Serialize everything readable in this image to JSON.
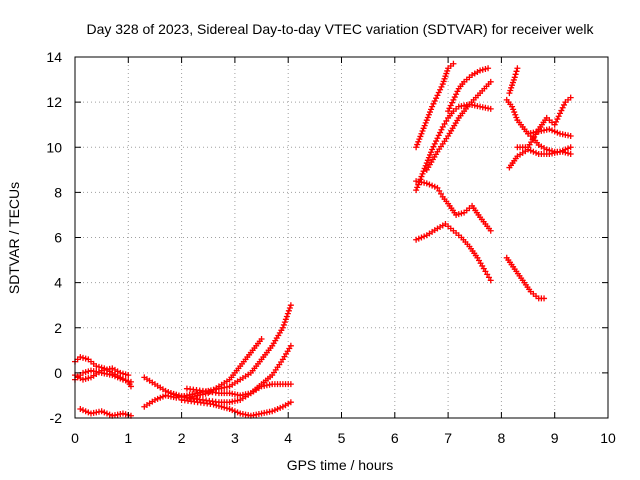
{
  "chart_data": {
    "type": "scatter",
    "title": "Day 328 of 2023, Sidereal Day-to-day VTEC variation (SDTVAR) for receiver welk",
    "xlabel": "GPS time / hours",
    "ylabel": "SDTVAR / TECUs",
    "xlim": [
      0,
      10
    ],
    "ylim": [
      -2,
      14
    ],
    "xticks": [
      0,
      1,
      2,
      3,
      4,
      5,
      6,
      7,
      8,
      9,
      10
    ],
    "yticks": [
      -2,
      0,
      2,
      4,
      6,
      8,
      10,
      12,
      14
    ],
    "grid": true,
    "legend": "none",
    "marker": "plus",
    "color": "#ff0000",
    "series": [
      {
        "points": [
          [
            0.0,
            0.5
          ],
          [
            0.1,
            0.7
          ],
          [
            0.25,
            0.6
          ],
          [
            0.4,
            0.3
          ],
          [
            0.55,
            0.2
          ],
          [
            0.7,
            0.0
          ],
          [
            0.85,
            -0.2
          ],
          [
            1.0,
            -0.4
          ],
          [
            1.05,
            -0.6
          ]
        ]
      },
      {
        "points": [
          [
            0.0,
            -0.3
          ],
          [
            0.15,
            0.0
          ],
          [
            0.3,
            0.1
          ],
          [
            0.5,
            0.0
          ],
          [
            0.7,
            -0.1
          ],
          [
            0.9,
            -0.3
          ],
          [
            1.05,
            -0.4
          ]
        ]
      },
      {
        "points": [
          [
            0.0,
            -0.1
          ],
          [
            0.15,
            -0.3
          ],
          [
            0.3,
            -0.2
          ],
          [
            0.5,
            0.1
          ],
          [
            0.7,
            0.2
          ],
          [
            0.85,
            0.0
          ],
          [
            1.0,
            -0.1
          ]
        ]
      },
      {
        "points": [
          [
            0.1,
            -1.6
          ],
          [
            0.3,
            -1.8
          ],
          [
            0.5,
            -1.7
          ],
          [
            0.7,
            -1.9
          ],
          [
            0.9,
            -1.8
          ],
          [
            1.05,
            -1.9
          ]
        ]
      },
      {
        "points": [
          [
            1.3,
            -0.2
          ],
          [
            1.5,
            -0.5
          ],
          [
            1.7,
            -0.8
          ],
          [
            1.9,
            -1.0
          ],
          [
            2.1,
            -1.1
          ],
          [
            2.3,
            -1.0
          ],
          [
            2.5,
            -0.9
          ],
          [
            2.7,
            -0.6
          ],
          [
            2.9,
            -0.3
          ],
          [
            3.1,
            0.3
          ],
          [
            3.3,
            0.9
          ],
          [
            3.5,
            1.5
          ]
        ]
      },
      {
        "points": [
          [
            1.3,
            -1.5
          ],
          [
            1.5,
            -1.2
          ],
          [
            1.7,
            -1.0
          ],
          [
            1.9,
            -1.1
          ],
          [
            2.1,
            -1.0
          ],
          [
            2.3,
            -0.9
          ],
          [
            2.5,
            -0.8
          ],
          [
            2.7,
            -0.7
          ],
          [
            2.9,
            -0.6
          ],
          [
            3.1,
            -0.3
          ],
          [
            3.3,
            0.0
          ],
          [
            3.5,
            0.6
          ],
          [
            3.7,
            1.2
          ],
          [
            3.9,
            2.0
          ],
          [
            4.05,
            3.0
          ]
        ]
      },
      {
        "points": [
          [
            1.8,
            -0.9
          ],
          [
            2.1,
            -1.1
          ],
          [
            2.4,
            -1.2
          ],
          [
            2.7,
            -1.3
          ],
          [
            2.9,
            -1.3
          ],
          [
            3.1,
            -1.2
          ],
          [
            3.3,
            -0.9
          ],
          [
            3.5,
            -0.5
          ],
          [
            3.7,
            -0.1
          ],
          [
            3.9,
            0.6
          ],
          [
            4.05,
            1.2
          ]
        ]
      },
      {
        "points": [
          [
            2.0,
            -1.2
          ],
          [
            2.3,
            -1.3
          ],
          [
            2.6,
            -1.4
          ],
          [
            2.9,
            -1.6
          ],
          [
            3.1,
            -1.8
          ],
          [
            3.3,
            -1.9
          ],
          [
            3.5,
            -1.8
          ],
          [
            3.7,
            -1.7
          ],
          [
            3.9,
            -1.5
          ],
          [
            4.05,
            -1.3
          ]
        ]
      },
      {
        "points": [
          [
            2.1,
            -0.7
          ],
          [
            2.4,
            -0.8
          ],
          [
            2.7,
            -0.9
          ],
          [
            2.9,
            -0.9
          ],
          [
            3.1,
            -1.0
          ],
          [
            3.3,
            -0.9
          ],
          [
            3.5,
            -0.6
          ],
          [
            3.7,
            -0.5
          ],
          [
            3.9,
            -0.5
          ],
          [
            4.05,
            -0.5
          ]
        ]
      },
      {
        "points": [
          [
            6.4,
            10.0
          ],
          [
            6.5,
            10.6
          ],
          [
            6.6,
            11.2
          ],
          [
            6.7,
            11.8
          ],
          [
            6.8,
            12.3
          ],
          [
            6.9,
            12.8
          ],
          [
            7.0,
            13.5
          ],
          [
            7.1,
            13.7
          ]
        ]
      },
      {
        "points": [
          [
            6.4,
            8.1
          ],
          [
            6.5,
            8.7
          ],
          [
            6.6,
            9.3
          ],
          [
            6.7,
            9.9
          ],
          [
            6.8,
            10.4
          ],
          [
            6.9,
            10.9
          ],
          [
            7.0,
            11.3
          ],
          [
            7.1,
            11.6
          ],
          [
            7.2,
            11.8
          ],
          [
            7.4,
            11.9
          ],
          [
            7.6,
            11.8
          ],
          [
            7.8,
            11.7
          ]
        ]
      },
      {
        "points": [
          [
            6.6,
            9.0
          ],
          [
            6.8,
            9.8
          ],
          [
            7.0,
            10.5
          ],
          [
            7.2,
            11.3
          ],
          [
            7.4,
            11.9
          ],
          [
            7.6,
            12.4
          ],
          [
            7.8,
            12.9
          ]
        ]
      },
      {
        "points": [
          [
            7.0,
            11.6
          ],
          [
            7.1,
            12.1
          ],
          [
            7.2,
            12.6
          ],
          [
            7.3,
            12.9
          ],
          [
            7.45,
            13.2
          ],
          [
            7.6,
            13.4
          ],
          [
            7.75,
            13.5
          ]
        ]
      },
      {
        "points": [
          [
            6.4,
            8.5
          ],
          [
            6.6,
            8.4
          ],
          [
            6.8,
            8.2
          ],
          [
            6.9,
            7.8
          ],
          [
            7.0,
            7.5
          ],
          [
            7.15,
            7.0
          ],
          [
            7.3,
            7.1
          ],
          [
            7.45,
            7.4
          ],
          [
            7.6,
            6.9
          ],
          [
            7.8,
            6.3
          ]
        ]
      },
      {
        "points": [
          [
            6.4,
            5.9
          ],
          [
            6.6,
            6.1
          ],
          [
            6.8,
            6.4
          ],
          [
            6.95,
            6.6
          ],
          [
            7.1,
            6.3
          ],
          [
            7.25,
            6.0
          ],
          [
            7.4,
            5.6
          ],
          [
            7.55,
            5.1
          ],
          [
            7.7,
            4.5
          ],
          [
            7.8,
            4.1
          ]
        ]
      },
      {
        "points": [
          [
            8.1,
            5.1
          ],
          [
            8.25,
            4.6
          ],
          [
            8.4,
            4.1
          ],
          [
            8.55,
            3.6
          ],
          [
            8.7,
            3.3
          ],
          [
            8.8,
            3.3
          ]
        ]
      },
      {
        "points": [
          [
            8.1,
            12.1
          ],
          [
            8.2,
            11.8
          ],
          [
            8.3,
            11.2
          ],
          [
            8.4,
            10.9
          ],
          [
            8.5,
            10.6
          ],
          [
            8.6,
            10.4
          ],
          [
            8.7,
            10.1
          ],
          [
            8.85,
            9.9
          ],
          [
            9.0,
            9.8
          ],
          [
            9.15,
            9.8
          ],
          [
            9.3,
            9.7
          ]
        ]
      },
      {
        "points": [
          [
            8.15,
            9.1
          ],
          [
            8.3,
            9.6
          ],
          [
            8.5,
            9.9
          ],
          [
            8.7,
            9.7
          ],
          [
            8.9,
            9.7
          ],
          [
            9.1,
            9.8
          ],
          [
            9.3,
            10.0
          ]
        ]
      },
      {
        "points": [
          [
            8.15,
            12.4
          ],
          [
            8.25,
            13.1
          ],
          [
            8.3,
            13.5
          ]
        ]
      },
      {
        "points": [
          [
            8.3,
            10.0
          ],
          [
            8.5,
            10.0
          ],
          [
            8.7,
            10.8
          ],
          [
            8.85,
            11.3
          ],
          [
            9.0,
            11.0
          ],
          [
            9.1,
            11.5
          ],
          [
            9.2,
            12.0
          ],
          [
            9.3,
            12.2
          ]
        ]
      },
      {
        "points": [
          [
            8.5,
            10.6
          ],
          [
            8.7,
            10.7
          ],
          [
            8.9,
            10.8
          ],
          [
            9.1,
            10.6
          ],
          [
            9.3,
            10.5
          ]
        ]
      }
    ]
  }
}
